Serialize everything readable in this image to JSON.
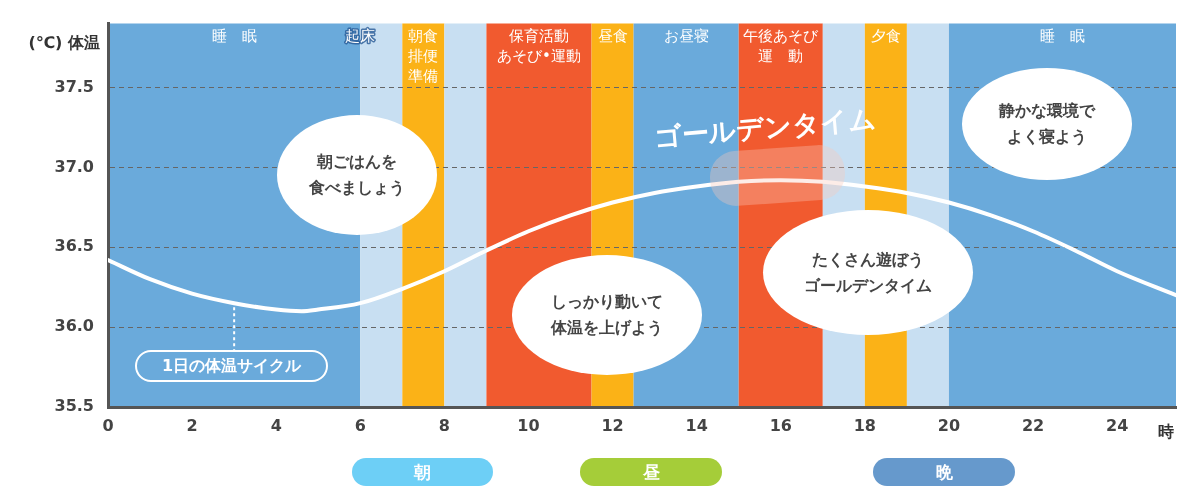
{
  "chart_data": {
    "type": "line",
    "xlabel": "時",
    "ylabel": "(℃) 体温",
    "x": [
      0,
      1,
      2,
      3,
      4,
      4.6,
      5,
      6,
      7,
      8,
      9,
      10,
      11,
      12,
      13,
      14,
      15,
      16,
      17,
      18,
      19,
      20,
      21,
      22,
      23,
      24,
      25.4
    ],
    "series": [
      {
        "color": "#ffffff",
        "values": [
          36.42,
          36.3,
          36.21,
          36.15,
          36.11,
          36.1,
          36.11,
          36.15,
          36.24,
          36.35,
          36.48,
          36.6,
          36.7,
          36.78,
          36.84,
          36.88,
          36.91,
          36.92,
          36.91,
          36.88,
          36.84,
          36.78,
          36.7,
          36.6,
          36.48,
          36.35,
          36.2
        ]
      }
    ],
    "xlim": [
      0,
      25.4
    ],
    "xticks": [
      0,
      2,
      4,
      6,
      8,
      10,
      12,
      14,
      16,
      18,
      20,
      22,
      24
    ],
    "ylim": [
      35.5,
      37.9
    ],
    "yticks": [
      35.5,
      {
        "value": 36,
        "label": "36.0"
      },
      36.5,
      {
        "value": 37,
        "label": "37.0"
      },
      37.5
    ],
    "grid": "y",
    "legend": false,
    "marker": "none",
    "line_style": "solid",
    "bands": [
      {
        "axis": "x",
        "from": 0,
        "to": 6,
        "label": "睡　眠",
        "color": "#6aaadb"
      },
      {
        "axis": "x",
        "from": 6,
        "to": 7,
        "label": "起床",
        "color": "#c8dff2"
      },
      {
        "axis": "x",
        "from": 7,
        "to": 8,
        "label": "朝食排便準備",
        "color": "#fbb217"
      },
      {
        "axis": "x",
        "from": 8,
        "to": 9,
        "color": "#c8dff2"
      },
      {
        "axis": "x",
        "from": 9,
        "to": 11.5,
        "label": "保育活動あそび•運動",
        "color": "#f15a2f"
      },
      {
        "axis": "x",
        "from": 11.5,
        "to": 12.5,
        "label": "昼食",
        "color": "#fbb217"
      },
      {
        "axis": "x",
        "from": 12.5,
        "to": 15,
        "label": "お昼寝",
        "color": "#6aaadb"
      },
      {
        "axis": "x",
        "from": 15,
        "to": 17,
        "label": "午後あそび運　動",
        "color": "#f15a2f"
      },
      {
        "axis": "x",
        "from": 17,
        "to": 18,
        "color": "#c8dff2"
      },
      {
        "axis": "x",
        "from": 18,
        "to": 19,
        "label": "夕食",
        "color": "#fbb217"
      },
      {
        "axis": "x",
        "from": 19,
        "to": 20,
        "color": "#c8dff2"
      },
      {
        "axis": "x",
        "from": 20,
        "to": 25.4,
        "label": "睡　眠",
        "color": "#6aaadb"
      }
    ],
    "annotations": [
      {
        "text": "1日の体温サイクル",
        "x": 3,
        "y": 36.15
      },
      "朝ごはんを食べましょう",
      "しっかり動いて体温を上げよう",
      "たくさん遊ぼうゴールデンタイム",
      "静かな環境でよく寝よう",
      "ゴールデンタイム",
      "朝",
      "昼",
      "晩"
    ]
  }
}
